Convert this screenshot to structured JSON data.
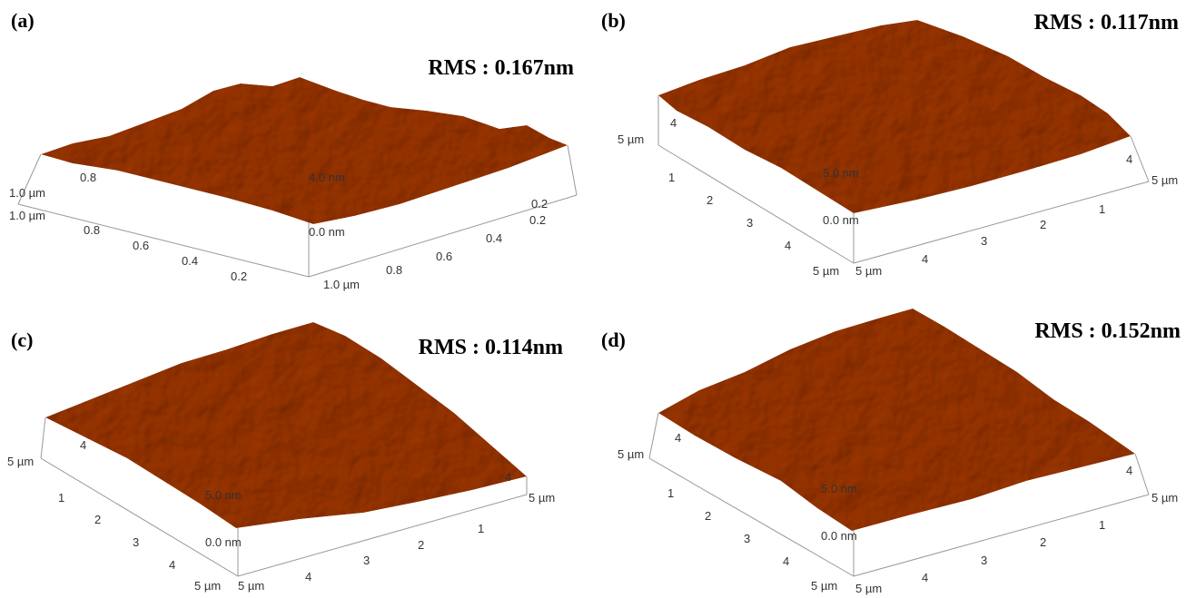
{
  "panels": [
    {
      "label": "(a)",
      "rms": "RMS : 0.167nm",
      "axis_labels": [
        "1.0 µm",
        "0.8",
        "1.0 µm",
        "0.8",
        "0.6",
        "0.4",
        "0.2",
        "1.0 µm",
        "0.8",
        "0.6",
        "0.4",
        "0.2",
        "0.2",
        "4.0 nm",
        "0.0 nm"
      ]
    },
    {
      "label": "(b)",
      "rms": "RMS : 0.117nm",
      "axis_labels": [
        "5 µm",
        "4",
        "1",
        "2",
        "3",
        "4",
        "5 µm",
        "5 µm",
        "4",
        "3",
        "2",
        "1",
        "4",
        "5 µm",
        "5.0 nm",
        "0.0 nm"
      ]
    },
    {
      "label": "(c)",
      "rms": "RMS : 0.114nm",
      "axis_labels": [
        "5 µm",
        "4",
        "1",
        "2",
        "3",
        "4",
        "5 µm",
        "5 µm",
        "4",
        "3",
        "2",
        "1",
        "4",
        "5 µm",
        "5.0 nm",
        "0.0 nm"
      ]
    },
    {
      "label": "(d)",
      "rms": "RMS : 0.152nm",
      "axis_labels": [
        "5 µm",
        "4",
        "1",
        "2",
        "3",
        "4",
        "5 µm",
        "5 µm",
        "4",
        "3",
        "2",
        "1",
        "4",
        "5 µm",
        "5.0 nm",
        "0.0 nm"
      ]
    }
  ]
}
